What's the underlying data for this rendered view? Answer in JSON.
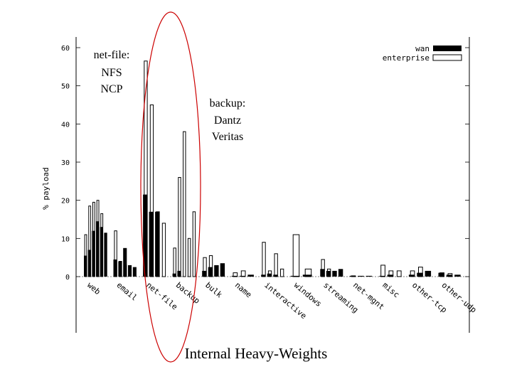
{
  "chart_data": {
    "type": "bar",
    "ylabel": "% payload",
    "ylim": [
      0,
      60
    ],
    "yticks": [
      "0",
      "10",
      "20",
      "30",
      "40",
      "50",
      "60"
    ],
    "categories": [
      "web",
      "email",
      "net-file",
      "backup",
      "bulk",
      "name",
      "interactive",
      "windows",
      "streaming",
      "net-mgnt",
      "misc",
      "other-tcp",
      "other-udp"
    ],
    "series": [
      {
        "name": "wan",
        "fill": "#000000",
        "groups": [
          [
            5.5,
            7,
            12,
            14.5,
            13,
            11.5
          ],
          [
            4.5,
            4,
            7.5,
            3,
            2.5
          ],
          [
            21.5,
            17,
            17
          ],
          [
            0.8,
            1.5
          ],
          [
            1.5,
            2.5,
            3,
            3.5
          ],
          [
            0.2,
            0.2,
            0.5
          ],
          [
            0.5,
            0.8,
            0.5
          ],
          [
            0.2,
            0.5
          ],
          [
            2,
            1.5,
            1.5,
            2
          ],
          [
            0.2,
            0.2,
            0.2
          ],
          [
            0.2,
            0.5
          ],
          [
            0.5,
            1,
            1.5
          ],
          [
            1,
            0.5,
            0.5
          ]
        ]
      },
      {
        "name": "enterprise",
        "fill": "#ffffff",
        "groups": [
          [
            11,
            18.5,
            19.5,
            20,
            16.5
          ],
          [
            12,
            4,
            3
          ],
          [
            56.5,
            45,
            17,
            14
          ],
          [
            7.5,
            26,
            38,
            10,
            17
          ],
          [
            5,
            5.5
          ],
          [
            1,
            1.5
          ],
          [
            9,
            1.5,
            6,
            2
          ],
          [
            11,
            2
          ],
          [
            4.5,
            2
          ],
          [
            0.2
          ],
          [
            3,
            1.5,
            1.5
          ],
          [
            1.5,
            2.5
          ],
          [
            1,
            0.8
          ]
        ]
      }
    ]
  },
  "legend": {
    "wan_label": "wan",
    "enterprise_label": "enterprise"
  },
  "annotations": {
    "netfile": [
      "net-file:",
      "NFS",
      "NCP"
    ],
    "backup": [
      "backup:",
      "Dantz",
      "Veritas"
    ],
    "ellipse_color": "#cc0000"
  },
  "slide_title": "Internal Heavy-Weights"
}
